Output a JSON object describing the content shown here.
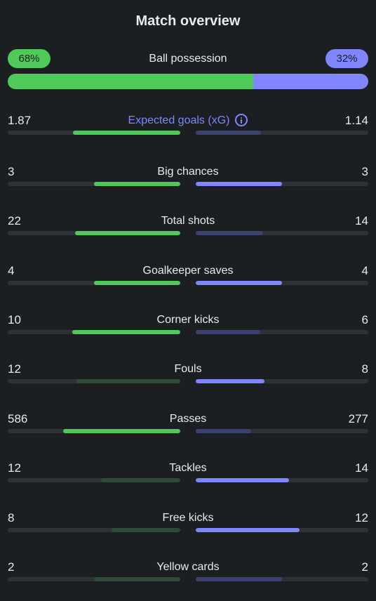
{
  "title": "Match overview",
  "colors": {
    "home": "#4fc95a",
    "away": "#7f86ff",
    "home_dim": "#2f4a36",
    "away_dim": "#3c4370"
  },
  "possession": {
    "label": "Ball possession",
    "home": "68%",
    "away": "32%",
    "home_value": 68,
    "away_value": 32
  },
  "stats": [
    {
      "label": "Expected goals (xG)",
      "home": "1.87",
      "away": "1.14",
      "home_fill": 0.62,
      "away_fill": 0.38,
      "home_win": true,
      "away_win": false,
      "accent": true,
      "icon": "info-icon"
    },
    {
      "label": "Big chances",
      "home": "3",
      "away": "3",
      "home_fill": 0.5,
      "away_fill": 0.5,
      "home_win": true,
      "away_win": true
    },
    {
      "label": "Total shots",
      "home": "22",
      "away": "14",
      "home_fill": 0.61,
      "away_fill": 0.39,
      "home_win": true,
      "away_win": false
    },
    {
      "label": "Goalkeeper saves",
      "home": "4",
      "away": "4",
      "home_fill": 0.5,
      "away_fill": 0.5,
      "home_win": true,
      "away_win": true
    },
    {
      "label": "Corner kicks",
      "home": "10",
      "away": "6",
      "home_fill": 0.625,
      "away_fill": 0.375,
      "home_win": true,
      "away_win": false
    },
    {
      "label": "Fouls",
      "home": "12",
      "away": "8",
      "home_fill": 0.6,
      "away_fill": 0.4,
      "home_win": false,
      "away_win": true
    },
    {
      "label": "Passes",
      "home": "586",
      "away": "277",
      "home_fill": 0.68,
      "away_fill": 0.32,
      "home_win": true,
      "away_win": false
    },
    {
      "label": "Tackles",
      "home": "12",
      "away": "14",
      "home_fill": 0.46,
      "away_fill": 0.54,
      "home_win": false,
      "away_win": true
    },
    {
      "label": "Free kicks",
      "home": "8",
      "away": "12",
      "home_fill": 0.4,
      "away_fill": 0.6,
      "home_win": false,
      "away_win": true
    },
    {
      "label": "Yellow cards",
      "home": "2",
      "away": "2",
      "home_fill": 0.5,
      "away_fill": 0.5,
      "home_win": false,
      "away_win": false
    }
  ]
}
